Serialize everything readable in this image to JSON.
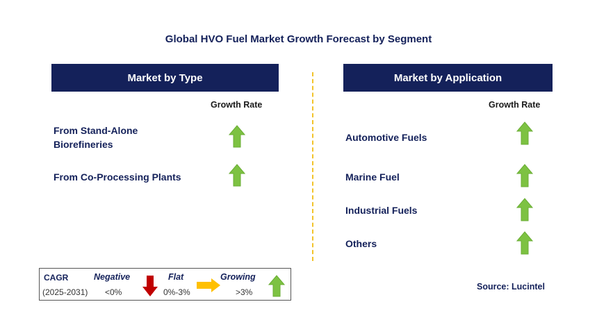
{
  "title": "Global HVO Fuel Market Growth Forecast by Segment",
  "left_panel": {
    "header": "Market by Type",
    "growth_label": "Growth Rate",
    "items": [
      {
        "label_line1": "From Stand-Alone",
        "label_line2": "Biorefineries",
        "trend": "growing"
      },
      {
        "label_line1": "From Co-Processing Plants",
        "label_line2": "",
        "trend": "growing"
      }
    ]
  },
  "right_panel": {
    "header": "Market by Application",
    "growth_label": "Growth Rate",
    "items": [
      {
        "label": "Automotive Fuels",
        "trend": "growing"
      },
      {
        "label": "Marine Fuel",
        "trend": "growing"
      },
      {
        "label": "Industrial Fuels",
        "trend": "growing"
      },
      {
        "label": "Others",
        "trend": "growing"
      }
    ]
  },
  "legend": {
    "cagr_label": "CAGR",
    "period": "(2025-2031)",
    "negative_label": "Negative",
    "negative_range": "<0%",
    "flat_label": "Flat",
    "flat_range": "0%-3%",
    "growing_label": "Growing",
    "growing_range": ">3%"
  },
  "source": "Source: Lucintel",
  "colors": {
    "navy": "#14215a",
    "growing_green": "#7dc242",
    "negative_red": "#c00000",
    "flat_yellow": "#ffc000",
    "divider_yellow": "#f2c32a"
  },
  "icons": {
    "growing": "up-arrow-icon",
    "negative": "down-arrow-icon",
    "flat": "right-arrow-icon"
  }
}
